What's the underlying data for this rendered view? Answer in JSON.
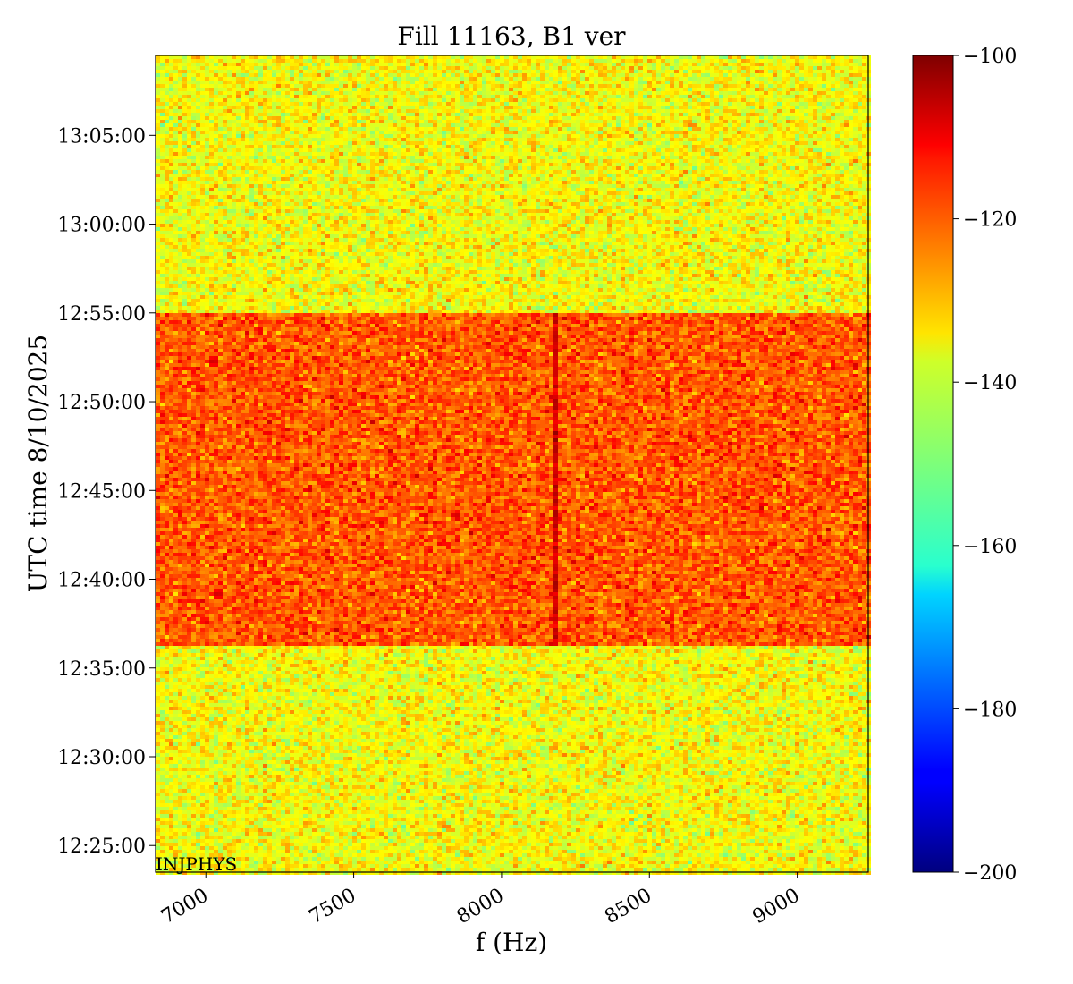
{
  "chart_data": {
    "type": "heatmap",
    "title": "Fill 11163, B1 ver",
    "xlabel": "f (Hz)",
    "ylabel": "UTC time 8/10/2025",
    "xlim": [
      6830,
      9240
    ],
    "x_ticks": [
      {
        "value": 7000,
        "label": "7000"
      },
      {
        "value": 7500,
        "label": "7500"
      },
      {
        "value": 8000,
        "label": "8000"
      },
      {
        "value": 8500,
        "label": "8500"
      },
      {
        "value": 9000,
        "label": "9000"
      }
    ],
    "ylim_minutes": [
      743.5,
      789.5
    ],
    "y_ticks": [
      {
        "value": 745,
        "label": "12:25:00"
      },
      {
        "value": 750,
        "label": "12:30:00"
      },
      {
        "value": 755,
        "label": "12:35:00"
      },
      {
        "value": 760,
        "label": "12:40:00"
      },
      {
        "value": 765,
        "label": "12:45:00"
      },
      {
        "value": 770,
        "label": "12:50:00"
      },
      {
        "value": 775,
        "label": "12:55:00"
      },
      {
        "value": 780,
        "label": "13:00:00"
      },
      {
        "value": 785,
        "label": "13:05:00"
      }
    ],
    "colorbar": {
      "colormap": "jet",
      "range": [
        -200,
        -100
      ],
      "ticks": [
        -100,
        -120,
        -140,
        -160,
        -180,
        -200
      ],
      "tick_labels": [
        "−100",
        "−120",
        "−140",
        "−160",
        "−180",
        "−200"
      ]
    },
    "regions": [
      {
        "t_start": 743.5,
        "t_end": 756.3,
        "level_db": -138,
        "note": "background"
      },
      {
        "t_start": 756.3,
        "t_end": 775.0,
        "level_db": -121,
        "note": "elevated"
      },
      {
        "t_start": 775.0,
        "t_end": 789.5,
        "level_db": -138,
        "note": "background"
      }
    ],
    "vertical_lines": [
      {
        "f": 8190,
        "t_start": 756.3,
        "t_end": 775.0,
        "level_db": -108
      }
    ],
    "annotations": [
      "INJPHYS"
    ]
  }
}
